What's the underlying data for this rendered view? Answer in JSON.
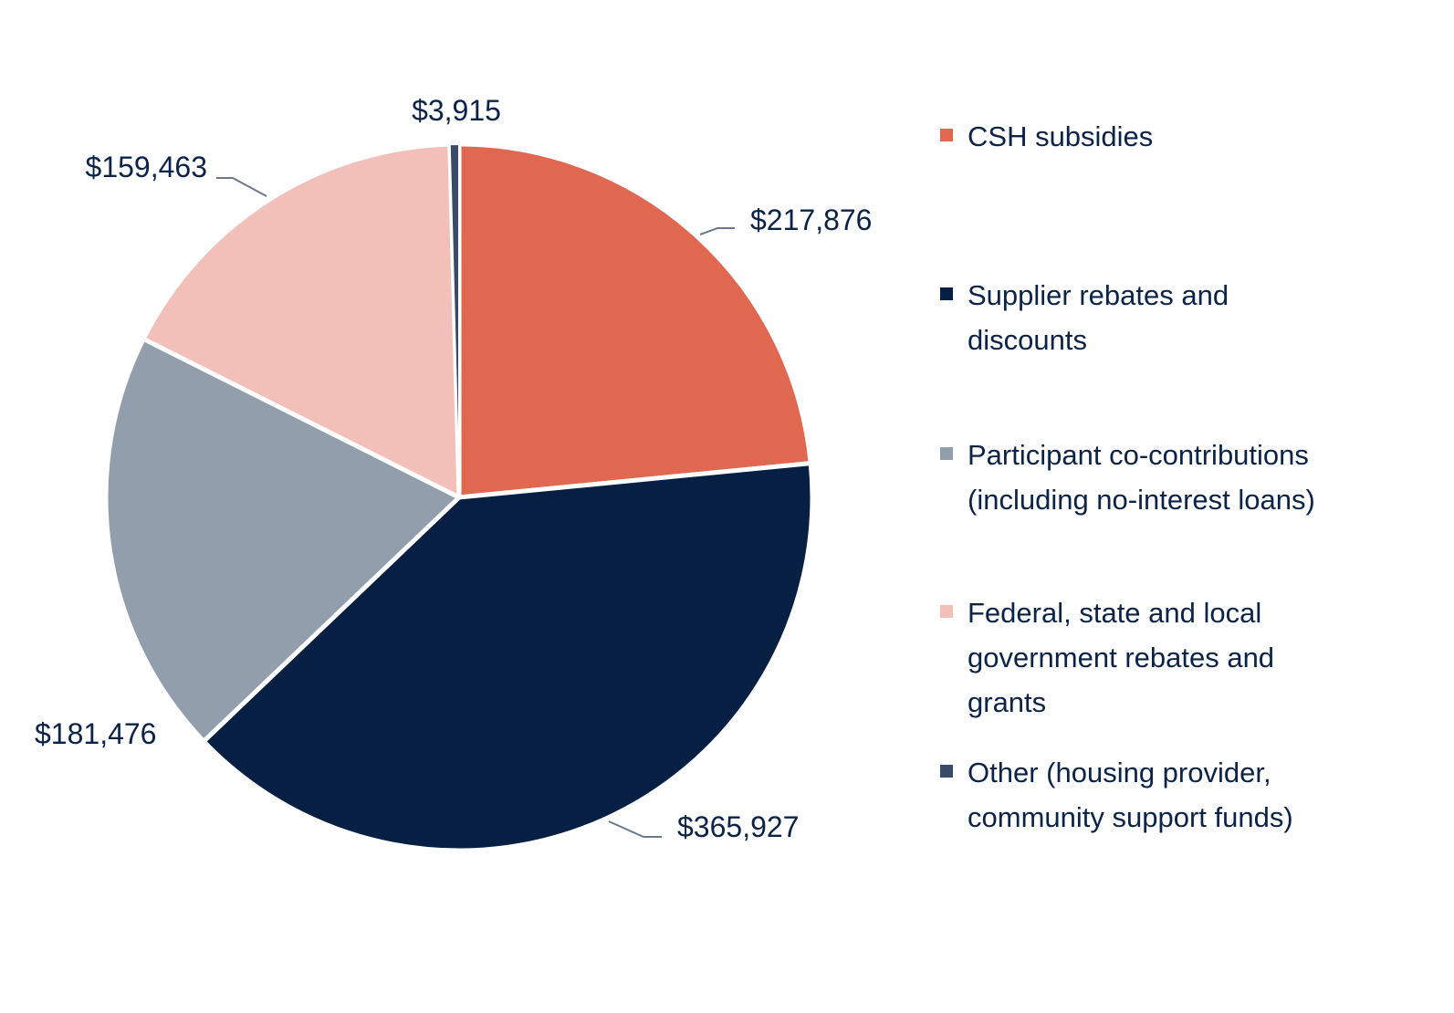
{
  "chart_data": {
    "type": "pie",
    "title": "",
    "start_angle": "12 o'clock, clockwise",
    "legend_position": "right",
    "slices": [
      {
        "label": "CSH subsidies",
        "value": 217876,
        "data_label": "$217,876",
        "color": "#E06851"
      },
      {
        "label": "Supplier rebates and discounts",
        "value": 365927,
        "data_label": "$365,927",
        "color": "#061F42"
      },
      {
        "label": "Participant co-contributions (including no-interest loans)",
        "value": 181476,
        "data_label": "$181,476",
        "color": "#929EAB"
      },
      {
        "label": "Federal, state and local government rebates and grants",
        "value": 159463,
        "data_label": "$159,463",
        "color": "#F2C0B9"
      },
      {
        "label": "Other (housing provider, community support funds)",
        "value": 3915,
        "data_label": "$3,915",
        "color": "#3A4A6B"
      }
    ]
  }
}
